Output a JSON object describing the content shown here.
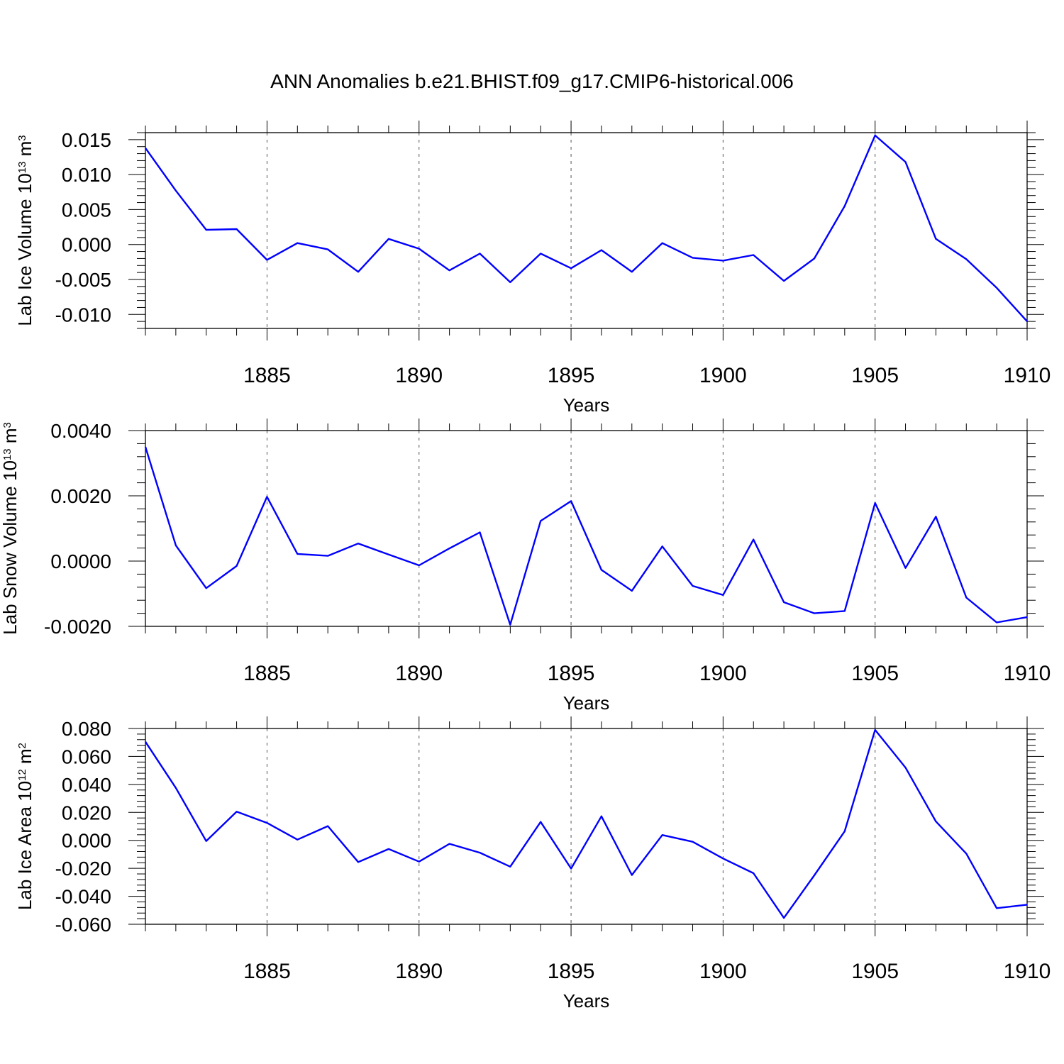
{
  "page": {
    "title": "ANN Anomalies b.e21.BHIST.f09_g17.CMIP6-historical.006"
  },
  "colors": {
    "line": "#0000ff",
    "axes": "#000000",
    "grid": "#555555",
    "background": "#ffffff"
  },
  "chart_data": [
    {
      "type": "line",
      "ylabel": "Lab Ice Volume 10",
      "ylabel_exp": "13",
      "ylabel_unit": " m",
      "ylabel_unit_exp": "3",
      "xlabel": "Years",
      "xlim": [
        1881,
        1910
      ],
      "ylim": [
        -0.012,
        0.016
      ],
      "yticks": [
        -0.01,
        -0.005,
        0.0,
        0.005,
        0.01,
        0.015
      ],
      "ytick_labels": [
        "-0.010",
        "-0.005",
        "0.000",
        "0.005",
        "0.010",
        "0.015"
      ],
      "xticks": [
        1885,
        1890,
        1895,
        1900,
        1905,
        1910
      ],
      "xtick_labels": [
        "1885",
        "1890",
        "1895",
        "1900",
        "1905",
        "1910"
      ],
      "grid": "vertical dashed at major x ticks",
      "x": [
        1881,
        1882,
        1883,
        1884,
        1885,
        1886,
        1887,
        1888,
        1889,
        1890,
        1891,
        1892,
        1893,
        1894,
        1895,
        1896,
        1897,
        1898,
        1899,
        1900,
        1901,
        1902,
        1903,
        1904,
        1905,
        1906,
        1907,
        1908,
        1909,
        1910
      ],
      "values": [
        0.0138,
        0.0077,
        0.0021,
        0.0022,
        -0.0022,
        0.0002,
        -0.0007,
        -0.0039,
        0.0008,
        -0.0006,
        -0.0037,
        -0.0013,
        -0.0054,
        -0.0013,
        -0.0034,
        -0.0008,
        -0.0039,
        0.0002,
        -0.0019,
        -0.0023,
        -0.0015,
        -0.0052,
        -0.002,
        0.0055,
        0.0156,
        0.0118,
        0.0008,
        -0.0021,
        -0.0062,
        -0.011
      ]
    },
    {
      "type": "line",
      "ylabel": "Lab Snow Volume 10",
      "ylabel_exp": "13",
      "ylabel_unit": " m",
      "ylabel_unit_exp": "3",
      "xlabel": "Years",
      "xlim": [
        1881,
        1910
      ],
      "ylim": [
        -0.002,
        0.004
      ],
      "yticks": [
        -0.002,
        0.0,
        0.002,
        0.004
      ],
      "ytick_labels": [
        "-0.0020",
        "0.0000",
        "0.0020",
        "0.0040"
      ],
      "xticks": [
        1885,
        1890,
        1895,
        1900,
        1905,
        1910
      ],
      "xtick_labels": [
        "1885",
        "1890",
        "1895",
        "1900",
        "1905",
        "1910"
      ],
      "grid": "vertical dashed at major x ticks",
      "x": [
        1881,
        1882,
        1883,
        1884,
        1885,
        1886,
        1887,
        1888,
        1889,
        1890,
        1891,
        1892,
        1893,
        1894,
        1895,
        1896,
        1897,
        1898,
        1899,
        1900,
        1901,
        1902,
        1903,
        1904,
        1905,
        1906,
        1907,
        1908,
        1909,
        1910
      ],
      "values": [
        0.0035,
        0.00048,
        -0.00083,
        -0.00015,
        0.00197,
        0.00022,
        0.00016,
        0.00054,
        0.0002,
        -0.00013,
        0.00039,
        0.00088,
        -0.00195,
        0.00123,
        0.00184,
        -0.00027,
        -0.00091,
        0.00045,
        -0.00076,
        -0.00104,
        0.00066,
        -0.00126,
        -0.0016,
        -0.00153,
        0.00178,
        -0.00021,
        0.00136,
        -0.00112,
        -0.00188,
        -0.00172
      ]
    },
    {
      "type": "line",
      "ylabel": "Lab Ice Area 10",
      "ylabel_exp": "12",
      "ylabel_unit": " m",
      "ylabel_unit_exp": "2",
      "xlabel": "Years",
      "xlim": [
        1881,
        1910
      ],
      "ylim": [
        -0.06,
        0.08
      ],
      "yticks": [
        -0.06,
        -0.04,
        -0.02,
        0.0,
        0.02,
        0.04,
        0.06,
        0.08
      ],
      "ytick_labels": [
        "-0.060",
        "-0.040",
        "-0.020",
        "0.000",
        "0.020",
        "0.040",
        "0.060",
        "0.080"
      ],
      "xticks": [
        1885,
        1890,
        1895,
        1900,
        1905,
        1910
      ],
      "xtick_labels": [
        "1885",
        "1890",
        "1895",
        "1900",
        "1905",
        "1910"
      ],
      "grid": "vertical dashed at major x ticks",
      "x": [
        1881,
        1882,
        1883,
        1884,
        1885,
        1886,
        1887,
        1888,
        1889,
        1890,
        1891,
        1892,
        1893,
        1894,
        1895,
        1896,
        1897,
        1898,
        1899,
        1900,
        1901,
        1902,
        1903,
        1904,
        1905,
        1906,
        1907,
        1908,
        1909,
        1910
      ],
      "values": [
        0.0705,
        0.0375,
        -0.0005,
        0.0205,
        0.0125,
        0.0005,
        0.0102,
        -0.0155,
        -0.0062,
        -0.0152,
        -0.0025,
        -0.0088,
        -0.0188,
        0.0132,
        -0.0202,
        0.0172,
        -0.0248,
        0.0038,
        -0.001,
        -0.013,
        -0.0235,
        -0.0555,
        -0.025,
        0.0065,
        0.079,
        0.052,
        0.0135,
        -0.0095,
        -0.0485,
        -0.046
      ]
    }
  ]
}
